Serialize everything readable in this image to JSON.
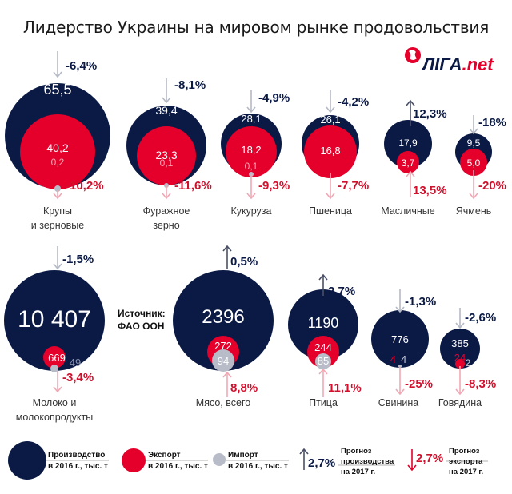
{
  "title": "Лидерство Украины на мировом рынке продовольствия",
  "logo": {
    "brand": "ЛІГА",
    "suffix": ".net"
  },
  "source": {
    "label": "Источник:",
    "value": "ФАО ООН"
  },
  "colors": {
    "production": "#0b1a45",
    "export": "#e4002b",
    "import": "#b8bcc8",
    "prod_forecast_text": "#0b1a45",
    "exp_forecast_text": "#d0102c",
    "arrow_down_prod": "#b5b9c5",
    "arrow_up_prod": "#4a5068",
    "arrow_exp": "#f0a8b4"
  },
  "chart_data": {
    "type": "bubble",
    "title": "Лидерство Украины на мировом рынке продовольствия",
    "units": "тыс. т",
    "series_names": [
      "Производство в 2016 г., тыс. т",
      "Экспорт в 2016 г., тыс. т",
      "Импорт в 2016 г., тыс. т"
    ],
    "items": [
      {
        "name": "Крупы\nи зерновые",
        "production": "65,5",
        "export": "40,2",
        "import": "0,2",
        "prod_forecast": "-6,4%",
        "exp_forecast": "-10,2%"
      },
      {
        "name": "Фуражное\nзерно",
        "production": "39,4",
        "export": "23,3",
        "import": "0,1",
        "prod_forecast": "-8,1%",
        "exp_forecast": "-11,6%"
      },
      {
        "name": "Кукуруза",
        "production": "28,1",
        "export": "18,2",
        "import": "0,1",
        "prod_forecast": "-4,9%",
        "exp_forecast": "-9,3%"
      },
      {
        "name": "Пшеница",
        "production": "26,1",
        "export": "16,8",
        "import": "",
        "prod_forecast": "-4,2%",
        "exp_forecast": "-7,7%"
      },
      {
        "name": "Масличные",
        "production": "17,9",
        "export": "3,7",
        "import": "",
        "prod_forecast": "12,3%",
        "exp_forecast": "13,5%"
      },
      {
        "name": "Ячмень",
        "production": "9,5",
        "export": "5,0",
        "import": "",
        "prod_forecast": "-18%",
        "exp_forecast": "-20%"
      },
      {
        "name": "Молоко и\nмолокопродукты",
        "production": "10 407",
        "export": "669",
        "import": "49",
        "prod_forecast": "-1,5%",
        "exp_forecast": "-3,4%"
      },
      {
        "name": "Мясо, всего",
        "production": "2396",
        "export": "272",
        "import": "94",
        "prod_forecast": "0,5%",
        "exp_forecast": "8,8%"
      },
      {
        "name": "Птица",
        "production": "1190",
        "export": "244",
        "import": "85",
        "prod_forecast": "2,7%",
        "exp_forecast": "11,1%"
      },
      {
        "name": "Свинина",
        "production": "776",
        "export": "4",
        "import": "4",
        "prod_forecast": "-1,3%",
        "exp_forecast": "-25%"
      },
      {
        "name": "Говядина",
        "production": "385",
        "export": "24",
        "import": "2",
        "prod_forecast": "-2,6%",
        "exp_forecast": "-8,3%"
      }
    ],
    "legend": {
      "production": [
        "Производство",
        "в 2016 г., тыс. т"
      ],
      "export": [
        "Экспорт",
        "в 2016 г., тыс. т"
      ],
      "import": [
        "Импорт",
        "в 2016 г., тыс. т"
      ],
      "prod_forecast": {
        "value": "2,7%",
        "lines": [
          "Прогноз",
          "производства",
          "на 2017 г."
        ]
      },
      "exp_forecast": {
        "value": "2,7%",
        "lines": [
          "Прогноз",
          "экспорта",
          "на 2017 г."
        ]
      }
    }
  }
}
